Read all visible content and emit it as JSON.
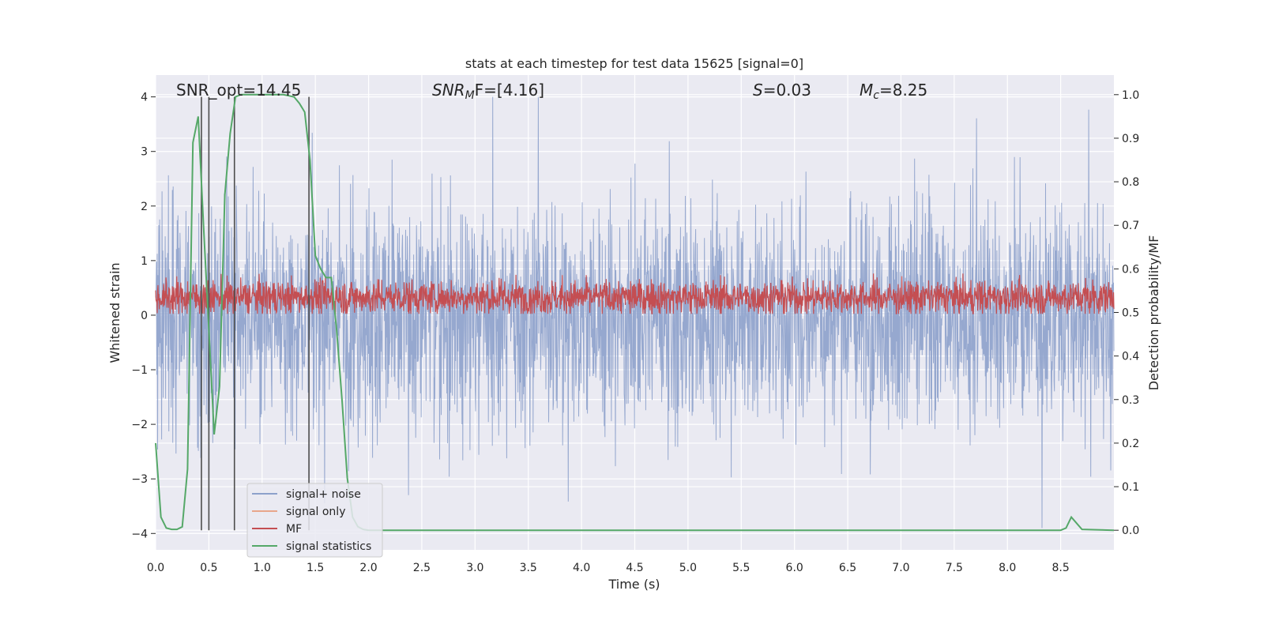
{
  "chart_data": {
    "type": "line",
    "title": "stats at each timestep for test data 15625 [signal=0]",
    "xlabel": "Time (s)",
    "ylabel_left": "Whitened strain",
    "ylabel_right": "Detection probability/MF",
    "xlim": [
      0,
      9.0
    ],
    "ylim_left": [
      -4.3,
      4.4
    ],
    "ylim_right": [
      -0.045,
      1.045
    ],
    "x_ticks": [
      "0.0",
      "0.5",
      "1.0",
      "1.5",
      "2.0",
      "2.5",
      "3.0",
      "3.5",
      "4.0",
      "4.5",
      "5.0",
      "5.5",
      "6.0",
      "6.5",
      "7.0",
      "7.5",
      "8.0",
      "8.5"
    ],
    "y_ticks_left": [
      "-4",
      "-3",
      "-2",
      "-1",
      "0",
      "1",
      "2",
      "3",
      "4"
    ],
    "y_ticks_right": [
      "0.0",
      "0.1",
      "0.2",
      "0.3",
      "0.4",
      "0.5",
      "0.6",
      "0.7",
      "0.8",
      "0.9",
      "1.0"
    ],
    "annotations": {
      "snr_opt": "SNR_opt=14.45",
      "snr_mf_sym": "SNR",
      "snr_mf_sub": "M",
      "snr_mf_rest": "F=[4.16]",
      "s_sym": "S",
      "s_val": "=0.03",
      "mc_sym": "M",
      "mc_sub": "c",
      "mc_val": "=8.25"
    },
    "legend": {
      "location": "lower left",
      "entries": [
        "signal+ noise",
        "signal only",
        "MF",
        "signal statistics"
      ]
    },
    "colors": {
      "noise": "#8da1cb",
      "signal_only": "#e8a68b",
      "mf": "#c44e52",
      "stat": "#55a868",
      "vline": "#4d4d4d",
      "background": "#eaeaf2",
      "grid": "#ffffff"
    },
    "series": [
      {
        "name": "signal statistics",
        "axis": "right",
        "x": [
          0.0,
          0.05,
          0.1,
          0.15,
          0.2,
          0.25,
          0.3,
          0.35,
          0.4,
          0.45,
          0.5,
          0.55,
          0.6,
          0.65,
          0.7,
          0.75,
          0.8,
          0.85,
          0.9,
          1.0,
          1.1,
          1.2,
          1.3,
          1.35,
          1.4,
          1.45,
          1.5,
          1.55,
          1.6,
          1.65,
          1.7,
          1.75,
          1.8,
          1.85,
          1.9,
          1.95,
          2.0,
          2.1,
          8.4,
          8.5,
          8.55,
          8.6,
          8.7,
          9.0
        ],
        "values": [
          0.2,
          0.03,
          0.005,
          0.002,
          0.002,
          0.008,
          0.14,
          0.89,
          0.95,
          0.7,
          0.46,
          0.22,
          0.33,
          0.77,
          0.91,
          0.995,
          1.0,
          1.0,
          1.0,
          1.0,
          1.0,
          1.0,
          0.995,
          0.98,
          0.96,
          0.85,
          0.63,
          0.6,
          0.58,
          0.58,
          0.46,
          0.3,
          0.12,
          0.03,
          0.008,
          0.002,
          0.0,
          0.0,
          0.0,
          0.0,
          0.005,
          0.03,
          0.002,
          0.0
        ]
      },
      {
        "name": "vertical markers",
        "axis": "left",
        "x": [
          0.43,
          0.5,
          0.74,
          1.44
        ],
        "y_top": [
          4.0,
          4.0,
          4.0,
          4.0
        ]
      }
    ]
  }
}
